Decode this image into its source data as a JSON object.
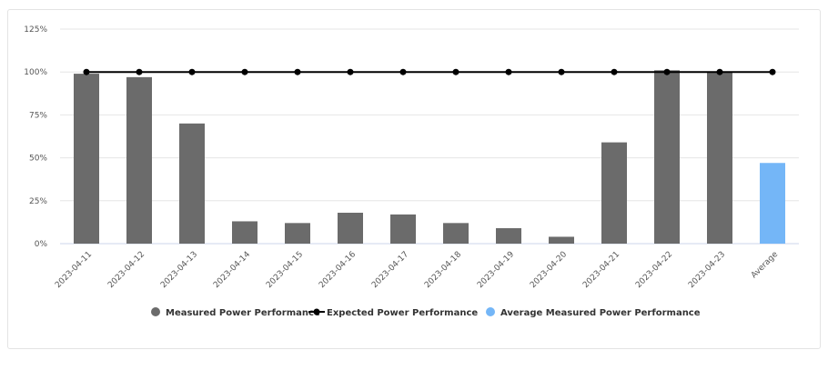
{
  "chart_data": {
    "type": "bar",
    "categories": [
      "2023-04-11",
      "2023-04-12",
      "2023-04-13",
      "2023-04-14",
      "2023-04-15",
      "2023-04-16",
      "2023-04-17",
      "2023-04-18",
      "2023-04-19",
      "2023-04-20",
      "2023-04-21",
      "2023-04-22",
      "2023-04-23",
      "Average"
    ],
    "series": [
      {
        "name": "Measured Power Performance",
        "type": "bar",
        "color": "#6b6b6b",
        "values": [
          99,
          97,
          70,
          13,
          12,
          18,
          17,
          12,
          9,
          4,
          59,
          101,
          100,
          null
        ]
      },
      {
        "name": "Expected Power Performance",
        "type": "line",
        "color": "#000000",
        "values": [
          100,
          100,
          100,
          100,
          100,
          100,
          100,
          100,
          100,
          100,
          100,
          100,
          100,
          100
        ]
      },
      {
        "name": "Average Measured Power Performance",
        "type": "bar",
        "color": "#74b6f7",
        "values": [
          null,
          null,
          null,
          null,
          null,
          null,
          null,
          null,
          null,
          null,
          null,
          null,
          null,
          47
        ]
      }
    ],
    "y_ticks": [
      "0%",
      "25%",
      "50%",
      "75%",
      "100%",
      "125%"
    ],
    "y_tick_values": [
      0,
      25,
      50,
      75,
      100,
      125
    ],
    "ylim": [
      0,
      125
    ],
    "grid": true,
    "legend_position": "bottom",
    "title": "",
    "xlabel": "",
    "ylabel": ""
  }
}
